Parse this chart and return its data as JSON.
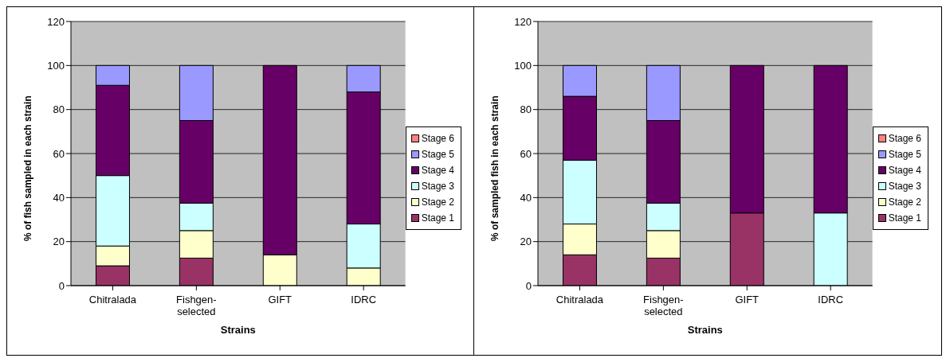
{
  "chart_data": [
    {
      "type": "bar",
      "stacked": true,
      "xlabel": "Strains",
      "ylabel": "% of fish sampled in each strain",
      "categories": [
        "Chitralada",
        "Fishgen-selected",
        "GIFT",
        "IDRC"
      ],
      "ylim": [
        0,
        120
      ],
      "yticks": [
        0,
        20,
        40,
        60,
        80,
        100,
        120
      ],
      "grid": "y",
      "legend": "right",
      "series": [
        {
          "name": "Stage 1",
          "color": "#993366",
          "values": [
            9,
            12.5,
            0,
            0
          ]
        },
        {
          "name": "Stage 2",
          "color": "#ffffcc",
          "values": [
            9,
            12.5,
            14,
            8
          ]
        },
        {
          "name": "Stage 3",
          "color": "#ccffff",
          "values": [
            32,
            12.5,
            0,
            20
          ]
        },
        {
          "name": "Stage 4",
          "color": "#660066",
          "values": [
            41,
            37.5,
            86,
            60
          ]
        },
        {
          "name": "Stage 5",
          "color": "#9999ff",
          "values": [
            9,
            25,
            0,
            12
          ]
        },
        {
          "name": "Stage 6",
          "color": "#ff8080",
          "values": [
            0,
            0,
            0,
            0
          ]
        }
      ]
    },
    {
      "type": "bar",
      "stacked": true,
      "xlabel": "Strains",
      "ylabel": "% of sampled fish in each strain",
      "categories": [
        "Chitralada",
        "Fishgen-selected",
        "GIFT",
        "IDRC"
      ],
      "ylim": [
        0,
        120
      ],
      "yticks": [
        0,
        20,
        40,
        60,
        80,
        100,
        120
      ],
      "grid": "y",
      "legend": "right",
      "series": [
        {
          "name": "Stage 1",
          "color": "#993366",
          "values": [
            14,
            12.5,
            33,
            0
          ]
        },
        {
          "name": "Stage 2",
          "color": "#ffffcc",
          "values": [
            14,
            12.5,
            0,
            0
          ]
        },
        {
          "name": "Stage 3",
          "color": "#ccffff",
          "values": [
            29,
            12.5,
            0,
            33
          ]
        },
        {
          "name": "Stage 4",
          "color": "#660066",
          "values": [
            29,
            37.5,
            67,
            67
          ]
        },
        {
          "name": "Stage 5",
          "color": "#9999ff",
          "values": [
            14,
            25,
            0,
            0
          ]
        },
        {
          "name": "Stage 6",
          "color": "#ff8080",
          "values": [
            0,
            0,
            0,
            0
          ]
        }
      ]
    }
  ]
}
